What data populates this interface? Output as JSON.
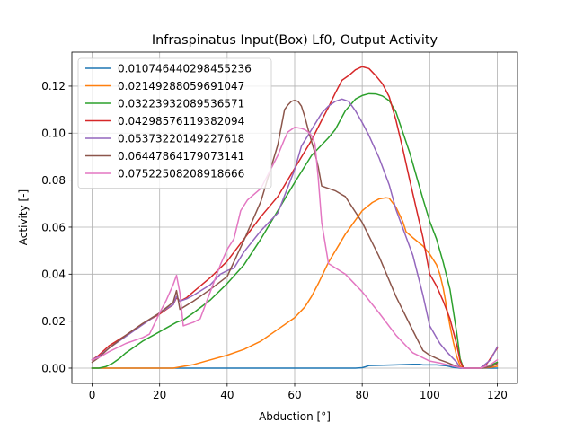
{
  "chart_data": {
    "type": "line",
    "title": "Infraspinatus Input(Box) Lf0, Output Activity",
    "xlabel": "Abduction [°]",
    "ylabel": "Activity [-]",
    "xlim": [
      -6,
      126
    ],
    "ylim": [
      -0.0065,
      0.1345
    ],
    "xticks": [
      0,
      20,
      40,
      60,
      80,
      100,
      120
    ],
    "xtick_labels": [
      "0",
      "20",
      "40",
      "60",
      "80",
      "100",
      "120"
    ],
    "yticks": [
      0.0,
      0.02,
      0.04,
      0.06,
      0.08,
      0.1,
      0.12
    ],
    "ytick_labels": [
      "0.00",
      "0.02",
      "0.04",
      "0.06",
      "0.08",
      "0.10",
      "0.12"
    ],
    "grid": true,
    "legend_position": "upper-left",
    "series": [
      {
        "name": "0.010746440298455236",
        "color": "#1f77b4",
        "x": [
          0,
          20,
          40,
          60,
          78,
          80,
          81,
          82,
          85,
          90,
          95,
          97,
          98,
          100,
          102,
          105,
          107,
          109,
          115,
          118,
          120
        ],
        "y": [
          0.0,
          0.0,
          0.0,
          0.0,
          0.0,
          0.0002,
          0.0006,
          0.0011,
          0.0012,
          0.0014,
          0.0016,
          0.0016,
          0.0014,
          0.0014,
          0.0014,
          0.001,
          0.0003,
          0.0,
          0.0,
          0.0,
          0.0
        ]
      },
      {
        "name": "0.02149288059691047",
        "color": "#ff7f0e",
        "x": [
          0,
          5,
          10,
          20,
          24,
          28,
          30,
          35,
          40,
          45,
          50,
          55,
          60,
          63,
          65,
          67,
          70,
          75,
          80,
          83,
          85,
          87,
          88,
          90,
          92,
          93,
          95,
          98,
          100,
          102,
          103,
          104,
          105,
          106,
          107,
          108,
          109,
          110,
          115,
          118,
          120
        ],
        "y": [
          0.0,
          0.0,
          0.0,
          0.0,
          0.0,
          0.001,
          0.0015,
          0.0035,
          0.0055,
          0.008,
          0.0115,
          0.0165,
          0.0215,
          0.026,
          0.0305,
          0.036,
          0.045,
          0.057,
          0.067,
          0.0705,
          0.072,
          0.0725,
          0.0723,
          0.0685,
          0.0625,
          0.058,
          0.0555,
          0.052,
          0.0485,
          0.044,
          0.04,
          0.034,
          0.026,
          0.018,
          0.011,
          0.005,
          0.001,
          0.0,
          0.0,
          0.0003,
          0.0008
        ]
      },
      {
        "name": "0.03223932089536571",
        "color": "#2ca02c",
        "x": [
          0,
          2,
          4,
          6,
          8,
          10,
          15,
          20,
          25,
          27,
          30,
          35,
          40,
          45,
          50,
          55,
          60,
          65,
          70,
          72,
          75,
          78,
          80,
          82,
          84,
          86,
          88,
          90,
          92,
          94,
          96,
          98,
          100,
          102,
          104,
          106,
          108,
          109,
          110,
          115,
          118,
          120
        ],
        "y": [
          0.0,
          0.0,
          0.0006,
          0.002,
          0.004,
          0.0065,
          0.0115,
          0.0155,
          0.0195,
          0.0205,
          0.0235,
          0.029,
          0.036,
          0.044,
          0.055,
          0.067,
          0.079,
          0.0905,
          0.098,
          0.1015,
          0.1095,
          0.1145,
          0.116,
          0.1168,
          0.1167,
          0.1158,
          0.1138,
          0.109,
          0.1005,
          0.092,
          0.082,
          0.072,
          0.0625,
          0.055,
          0.045,
          0.0335,
          0.015,
          0.004,
          0.0,
          0.0,
          0.0012,
          0.0025
        ]
      },
      {
        "name": "0.04298576119382094",
        "color": "#d62728",
        "x": [
          0,
          2,
          5,
          10,
          15,
          20,
          24,
          25,
          26,
          28,
          30,
          35,
          40,
          45,
          50,
          55,
          60,
          65,
          68,
          70,
          72,
          74,
          76,
          78,
          80,
          82,
          84,
          86,
          88,
          90,
          92,
          94,
          96,
          98,
          100,
          102,
          104,
          106,
          108,
          109,
          110,
          115,
          117,
          120
        ],
        "y": [
          0.0035,
          0.0055,
          0.0095,
          0.014,
          0.019,
          0.023,
          0.027,
          0.03,
          0.0285,
          0.03,
          0.0325,
          0.0385,
          0.0455,
          0.055,
          0.0645,
          0.073,
          0.085,
          0.097,
          0.1055,
          0.111,
          0.117,
          0.1225,
          0.1245,
          0.127,
          0.1283,
          0.1275,
          0.1245,
          0.121,
          0.1155,
          0.1055,
          0.0935,
          0.0805,
          0.068,
          0.0555,
          0.04,
          0.035,
          0.0285,
          0.021,
          0.01,
          0.003,
          0.0,
          0.0,
          0.002,
          0.0085
        ]
      },
      {
        "name": "0.05373220149227618",
        "color": "#9467bd",
        "x": [
          0,
          2,
          5,
          10,
          15,
          20,
          24,
          25,
          26,
          28,
          30,
          35,
          38,
          40,
          42,
          45,
          50,
          55,
          60,
          62,
          65,
          68,
          70,
          72,
          74,
          76,
          78,
          80,
          82,
          85,
          88,
          90,
          95,
          98,
          100,
          103,
          105,
          108,
          109,
          110,
          115,
          118,
          120
        ],
        "y": [
          0.0035,
          0.005,
          0.0085,
          0.0135,
          0.0185,
          0.0235,
          0.027,
          0.0305,
          0.0285,
          0.0295,
          0.031,
          0.0355,
          0.04,
          0.0415,
          0.0425,
          0.0495,
          0.0585,
          0.066,
          0.0845,
          0.0945,
          0.1015,
          0.1085,
          0.1115,
          0.1135,
          0.1145,
          0.1135,
          0.1095,
          0.1045,
          0.099,
          0.0895,
          0.078,
          0.0675,
          0.048,
          0.031,
          0.018,
          0.0105,
          0.007,
          0.0025,
          0.0,
          0.0,
          0.0,
          0.0035,
          0.009
        ]
      },
      {
        "name": "0.06447864179073141",
        "color": "#8c564b",
        "x": [
          0,
          2,
          5,
          10,
          15,
          20,
          24,
          25,
          26,
          30,
          35,
          40,
          45,
          50,
          55,
          57,
          58,
          59,
          60,
          61,
          62,
          63,
          64,
          65,
          66,
          67,
          68,
          70,
          72,
          75,
          80,
          85,
          90,
          95,
          98,
          100,
          103,
          105,
          108,
          110,
          115,
          118,
          120
        ],
        "y": [
          0.0025,
          0.0045,
          0.0085,
          0.014,
          0.019,
          0.0235,
          0.028,
          0.033,
          0.025,
          0.0285,
          0.0335,
          0.039,
          0.0545,
          0.071,
          0.095,
          0.11,
          0.112,
          0.1135,
          0.114,
          0.1135,
          0.1115,
          0.107,
          0.1015,
          0.0965,
          0.0915,
          0.0855,
          0.0775,
          0.0765,
          0.0755,
          0.073,
          0.062,
          0.0475,
          0.0305,
          0.016,
          0.0075,
          0.0055,
          0.0035,
          0.0025,
          0.0007,
          0.0,
          0.0,
          0.0005,
          0.002
        ]
      },
      {
        "name": "0.07522508208918666",
        "color": "#e377c2",
        "x": [
          0,
          2,
          5,
          10,
          15,
          17,
          20,
          22,
          24,
          25,
          26,
          27,
          28,
          30,
          32,
          35,
          38,
          40,
          42,
          44,
          46,
          50,
          55,
          57,
          58,
          60,
          62,
          63,
          64,
          65,
          66,
          67,
          68,
          70,
          75,
          80,
          85,
          90,
          95,
          100,
          103,
          105,
          108,
          110,
          115,
          118,
          120
        ],
        "y": [
          0.0035,
          0.0045,
          0.007,
          0.0105,
          0.013,
          0.0145,
          0.0235,
          0.029,
          0.0355,
          0.0395,
          0.032,
          0.018,
          0.0185,
          0.0195,
          0.021,
          0.0325,
          0.044,
          0.0505,
          0.055,
          0.067,
          0.0715,
          0.0765,
          0.0905,
          0.0975,
          0.1005,
          0.1025,
          0.102,
          0.1015,
          0.1005,
          0.099,
          0.0955,
          0.0805,
          0.062,
          0.0445,
          0.04,
          0.0325,
          0.0235,
          0.014,
          0.0065,
          0.003,
          0.0022,
          0.0015,
          0.0005,
          0.0,
          0.0,
          0.0015,
          0.0035
        ]
      }
    ]
  }
}
